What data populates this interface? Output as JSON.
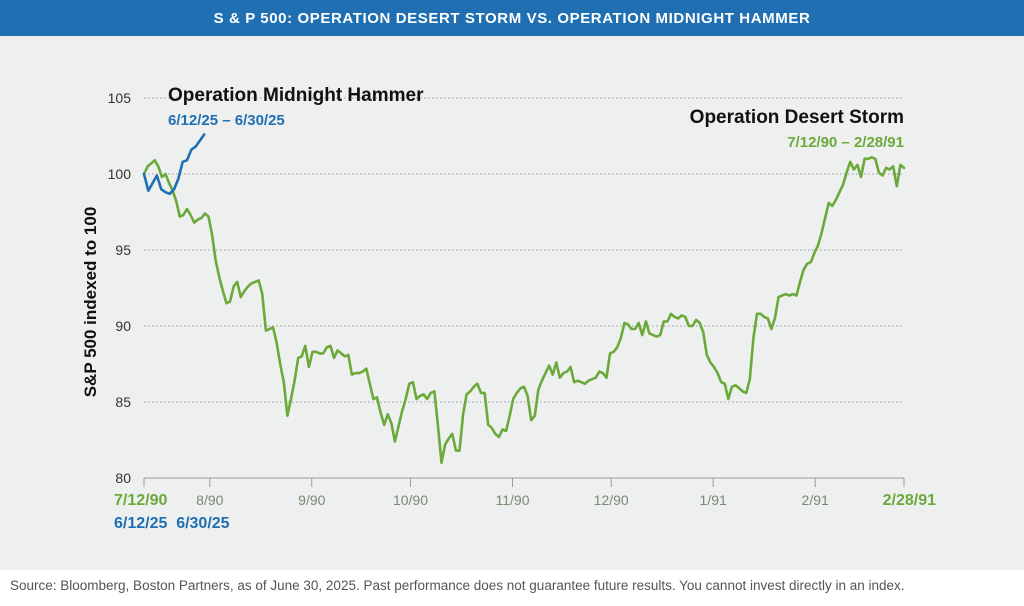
{
  "banner": {
    "title": "S & P 500: OPERATION DESERT STORM VS. OPERATION MIDNIGHT HAMMER"
  },
  "footer": {
    "source": "Source: Bloomberg, Boston Partners, as of June 30, 2025. Past performance does not guarantee future results. You cannot invest directly in an index."
  },
  "colors": {
    "banner": "#1f6fb2",
    "desert_storm": "#6aa93a",
    "midnight_hammer": "#1f6fb2",
    "grid": "#9a9a9a",
    "panel": "#eef0f0"
  },
  "chart_data": {
    "type": "line",
    "title": "S & P 500: OPERATION DESERT STORM VS. OPERATION MIDNIGHT HAMMER",
    "ylabel": "S&P 500 indexed to 100",
    "ylim": [
      80,
      105
    ],
    "yticks": [
      "80",
      "85",
      "90",
      "95",
      "100",
      "105"
    ],
    "grid": true,
    "x_axis_desert_storm": {
      "range": [
        "7/12/90",
        "2/28/91"
      ],
      "tick_labels": [
        "7/12/90",
        "8/90",
        "9/90",
        "10/90",
        "11/90",
        "12/90",
        "1/91",
        "2/91",
        "2/28/91"
      ]
    },
    "x_axis_midnight_hammer": {
      "range": [
        "6/12/25",
        "6/30/25"
      ],
      "tick_labels": [
        "6/12/25",
        "6/30/25"
      ]
    },
    "annotations": [
      {
        "title": "Operation Midnight Hammer",
        "dates": "6/12/25 – 6/30/25"
      },
      {
        "title": "Operation Desert Storm",
        "dates": "7/12/90 – 2/28/91"
      }
    ],
    "series": [
      {
        "name": "Operation Desert Storm",
        "color": "#6aa93a",
        "x_start": "7/12/90",
        "x_end": "2/28/91",
        "values": [
          100.0,
          100.5,
          100.7,
          100.9,
          100.5,
          99.8,
          100.0,
          99.4,
          98.9,
          98.2,
          97.2,
          97.3,
          97.7,
          97.3,
          96.8,
          97.0,
          97.1,
          97.4,
          97.2,
          96.0,
          94.3,
          93.2,
          92.3,
          91.5,
          91.6,
          92.6,
          92.9,
          91.9,
          92.3,
          92.6,
          92.8,
          92.9,
          93.0,
          92.1,
          89.7,
          89.8,
          89.9,
          88.9,
          87.5,
          86.3,
          84.1,
          85.2,
          86.4,
          87.9,
          88.0,
          88.7,
          87.3,
          88.3,
          88.3,
          88.2,
          88.2,
          88.6,
          88.7,
          87.9,
          88.4,
          88.2,
          88.0,
          88.1,
          86.8,
          86.9,
          86.9,
          87.0,
          87.2,
          86.2,
          85.2,
          85.3,
          84.3,
          83.5,
          84.2,
          83.6,
          82.4,
          83.4,
          84.4,
          85.2,
          86.2,
          86.3,
          85.2,
          85.4,
          85.5,
          85.2,
          85.6,
          85.7,
          83.4,
          81.0,
          82.2,
          82.6,
          82.9,
          81.8,
          81.8,
          84.2,
          85.5,
          85.7,
          86.0,
          86.2,
          85.6,
          85.6,
          83.5,
          83.3,
          82.9,
          82.7,
          83.2,
          83.1,
          84.1,
          85.2,
          85.6,
          85.9,
          86.0,
          85.4,
          83.8,
          84.1,
          85.8,
          86.4,
          86.9,
          87.4,
          86.8,
          87.6,
          86.6,
          86.9,
          87.0,
          87.3,
          86.3,
          86.4,
          86.3,
          86.2,
          86.4,
          86.5,
          86.6,
          87.0,
          86.9,
          86.6,
          88.2,
          88.3,
          88.6,
          89.2,
          90.2,
          90.1,
          89.8,
          89.8,
          90.2,
          89.4,
          90.3,
          89.5,
          89.4,
          89.3,
          89.4,
          90.3,
          90.3,
          90.8,
          90.6,
          90.5,
          90.7,
          90.6,
          90.0,
          90.0,
          90.4,
          90.2,
          89.6,
          88.1,
          87.6,
          87.3,
          86.9,
          86.3,
          86.2,
          85.2,
          86.0,
          86.1,
          85.9,
          85.7,
          85.6,
          86.5,
          89.2,
          90.8,
          90.8,
          90.6,
          90.5,
          89.8,
          90.5,
          91.9,
          92.0,
          92.1,
          92.0,
          92.1,
          92.0,
          92.9,
          93.7,
          94.1,
          94.2,
          94.8,
          95.3,
          96.1,
          97.1,
          98.1,
          97.9,
          98.3,
          98.8,
          99.3,
          100.1,
          100.8,
          100.3,
          100.6,
          99.8,
          101.0,
          101.0,
          101.1,
          101.0,
          100.1,
          99.9,
          100.4,
          100.3,
          100.5,
          99.2,
          100.6,
          100.4
        ]
      },
      {
        "name": "Operation Midnight Hammer",
        "color": "#1f6fb2",
        "x_start": "6/12/25",
        "x_end": "6/30/25",
        "values": [
          100.0,
          98.9,
          99.4,
          99.9,
          99.0,
          98.8,
          98.7,
          99.0,
          99.7,
          100.8,
          100.9,
          101.6,
          101.8,
          102.2,
          102.6
        ]
      }
    ]
  }
}
